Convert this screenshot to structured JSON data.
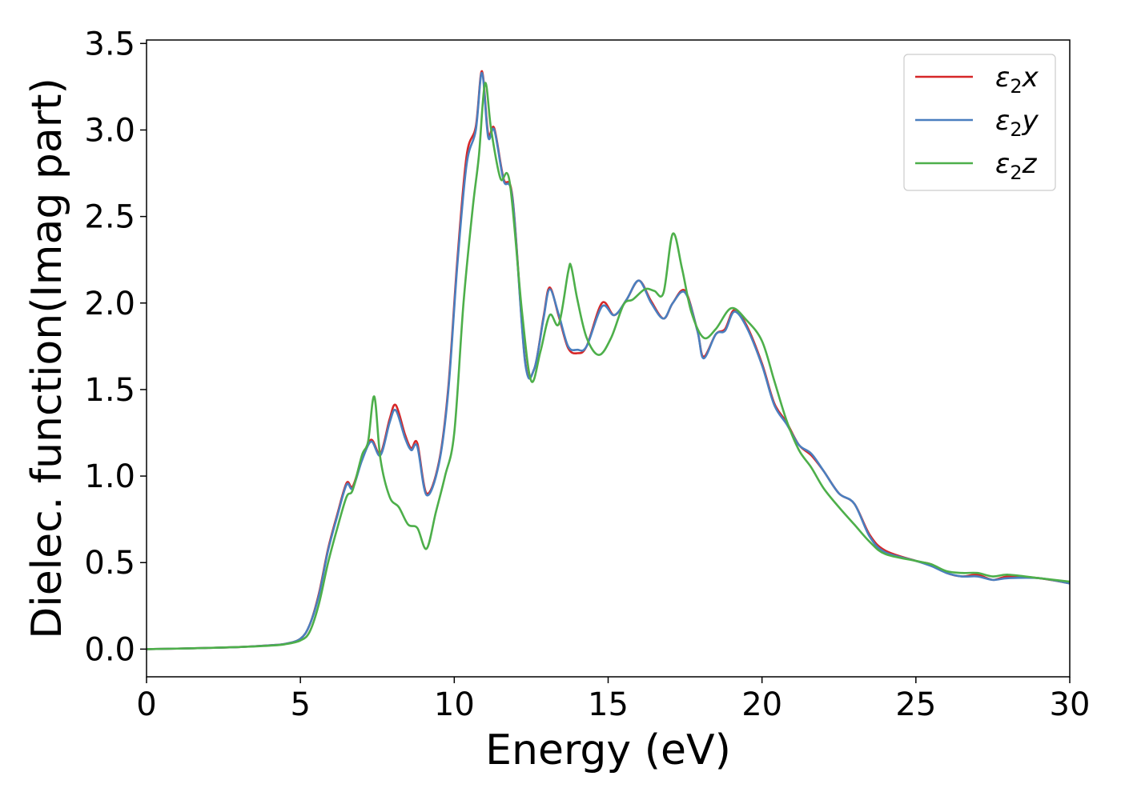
{
  "chart_data": {
    "type": "line",
    "xlabel": "Energy (eV)",
    "ylabel": "Dielec. function(Imag part)",
    "xlim": [
      0,
      30
    ],
    "ylim": [
      -0.16,
      3.52
    ],
    "xticks": [
      0,
      5,
      10,
      15,
      20,
      25,
      30
    ],
    "yticks": [
      0.0,
      0.5,
      1.0,
      1.5,
      2.0,
      2.5,
      3.0,
      3.5
    ],
    "xtick_labels": [
      "0",
      "5",
      "10",
      "15",
      "20",
      "25",
      "30"
    ],
    "ytick_labels": [
      "0.0",
      "0.5",
      "1.0",
      "1.5",
      "2.0",
      "2.5",
      "3.0",
      "3.5"
    ],
    "grid": false,
    "legend_position": "top-right",
    "series": [
      {
        "name": "ε₂x",
        "legend": {
          "base": "ε",
          "sub": "2",
          "var": "x"
        },
        "color": "#d62728",
        "x": [
          0,
          1,
          2,
          3,
          4,
          4.5,
          5,
          5.3,
          5.6,
          5.9,
          6.2,
          6.5,
          6.7,
          7.0,
          7.3,
          7.6,
          7.9,
          8.1,
          8.4,
          8.6,
          8.8,
          9.1,
          9.5,
          9.8,
          10.1,
          10.4,
          10.7,
          10.9,
          11.1,
          11.3,
          11.6,
          11.9,
          12.3,
          12.6,
          12.9,
          13.1,
          13.4,
          13.7,
          14.0,
          14.3,
          14.8,
          15.2,
          15.6,
          16.0,
          16.4,
          16.8,
          17.1,
          17.5,
          17.9,
          18.1,
          18.5,
          18.8,
          19.1,
          19.5,
          20.0,
          20.4,
          20.8,
          21.2,
          21.6,
          22.0,
          22.5,
          23.0,
          23.5,
          24.0,
          25.0,
          25.5,
          26.0,
          26.5,
          27.0,
          27.5,
          28.0,
          29.0,
          30.0
        ],
        "values": [
          0.0,
          0.003,
          0.007,
          0.012,
          0.022,
          0.03,
          0.06,
          0.14,
          0.32,
          0.58,
          0.78,
          0.96,
          0.94,
          1.1,
          1.21,
          1.13,
          1.33,
          1.41,
          1.24,
          1.16,
          1.19,
          0.9,
          1.08,
          1.5,
          2.25,
          2.85,
          3.02,
          3.34,
          2.98,
          3.01,
          2.72,
          2.6,
          1.67,
          1.62,
          1.92,
          2.09,
          1.92,
          1.74,
          1.71,
          1.75,
          2.0,
          1.93,
          2.02,
          2.13,
          2.01,
          1.91,
          2.0,
          2.07,
          1.84,
          1.69,
          1.82,
          1.85,
          1.96,
          1.87,
          1.65,
          1.42,
          1.31,
          1.18,
          1.12,
          1.03,
          0.9,
          0.84,
          0.66,
          0.57,
          0.51,
          0.49,
          0.44,
          0.42,
          0.43,
          0.4,
          0.42,
          0.41,
          0.38
        ]
      },
      {
        "name": "ε₂y",
        "legend": {
          "base": "ε",
          "sub": "2",
          "var": "y"
        },
        "color": "#4a7fbf",
        "x": [
          0,
          1,
          2,
          3,
          4,
          4.5,
          5,
          5.3,
          5.6,
          5.9,
          6.2,
          6.5,
          6.7,
          7.0,
          7.3,
          7.6,
          7.9,
          8.1,
          8.4,
          8.6,
          8.8,
          9.1,
          9.5,
          9.8,
          10.1,
          10.4,
          10.7,
          10.9,
          11.1,
          11.3,
          11.6,
          11.9,
          12.3,
          12.6,
          12.9,
          13.1,
          13.4,
          13.7,
          14.0,
          14.3,
          14.8,
          15.2,
          15.6,
          16.0,
          16.4,
          16.8,
          17.1,
          17.5,
          17.9,
          18.1,
          18.5,
          18.8,
          19.1,
          19.5,
          20.0,
          20.4,
          20.8,
          21.2,
          21.6,
          22.0,
          22.5,
          23.0,
          23.5,
          24.0,
          25.0,
          25.5,
          26.0,
          26.5,
          27.0,
          27.5,
          28.0,
          29.0,
          30.0
        ],
        "values": [
          0.0,
          0.003,
          0.007,
          0.012,
          0.022,
          0.03,
          0.06,
          0.14,
          0.31,
          0.57,
          0.77,
          0.95,
          0.93,
          1.09,
          1.2,
          1.12,
          1.31,
          1.38,
          1.22,
          1.15,
          1.17,
          0.89,
          1.07,
          1.48,
          2.22,
          2.8,
          3.0,
          3.33,
          2.96,
          3.0,
          2.71,
          2.59,
          1.66,
          1.62,
          1.91,
          2.08,
          1.93,
          1.75,
          1.73,
          1.75,
          1.98,
          1.93,
          2.02,
          2.13,
          2.0,
          1.91,
          2.0,
          2.06,
          1.84,
          1.68,
          1.82,
          1.84,
          1.95,
          1.86,
          1.64,
          1.41,
          1.3,
          1.18,
          1.13,
          1.03,
          0.9,
          0.84,
          0.65,
          0.56,
          0.51,
          0.48,
          0.44,
          0.42,
          0.42,
          0.4,
          0.41,
          0.41,
          0.38
        ]
      },
      {
        "name": "ε₂z",
        "legend": {
          "base": "ε",
          "sub": "2",
          "var": "z"
        },
        "color": "#4daf4a",
        "x": [
          0,
          1,
          2,
          3,
          4,
          4.5,
          5,
          5.3,
          5.6,
          5.9,
          6.2,
          6.5,
          6.7,
          7.0,
          7.2,
          7.4,
          7.6,
          7.9,
          8.2,
          8.5,
          8.8,
          9.1,
          9.4,
          9.7,
          10.0,
          10.3,
          10.6,
          10.8,
          11.0,
          11.2,
          11.5,
          11.8,
          12.2,
          12.5,
          12.8,
          13.1,
          13.4,
          13.7,
          13.8,
          14.0,
          14.3,
          14.7,
          15.1,
          15.5,
          15.8,
          16.2,
          16.5,
          16.8,
          17.1,
          17.4,
          17.7,
          18.1,
          18.5,
          19.0,
          19.5,
          20.0,
          20.4,
          20.8,
          21.2,
          21.6,
          22.0,
          22.5,
          23.0,
          23.5,
          24.0,
          25.0,
          25.5,
          26.0,
          26.5,
          27.0,
          27.5,
          28.0,
          29.0,
          30.0
        ],
        "values": [
          0.0,
          0.003,
          0.007,
          0.012,
          0.02,
          0.028,
          0.05,
          0.1,
          0.26,
          0.5,
          0.7,
          0.88,
          0.92,
          1.12,
          1.2,
          1.46,
          1.1,
          0.88,
          0.82,
          0.72,
          0.7,
          0.58,
          0.79,
          1.0,
          1.25,
          2.0,
          2.55,
          2.85,
          3.27,
          3.0,
          2.72,
          2.7,
          1.95,
          1.55,
          1.72,
          1.93,
          1.88,
          2.18,
          2.21,
          2.02,
          1.8,
          1.7,
          1.8,
          1.99,
          2.02,
          2.08,
          2.07,
          2.06,
          2.4,
          2.2,
          1.95,
          1.8,
          1.85,
          1.97,
          1.9,
          1.78,
          1.55,
          1.32,
          1.15,
          1.05,
          0.93,
          0.82,
          0.72,
          0.62,
          0.55,
          0.51,
          0.49,
          0.45,
          0.44,
          0.44,
          0.42,
          0.43,
          0.41,
          0.39
        ]
      }
    ]
  }
}
